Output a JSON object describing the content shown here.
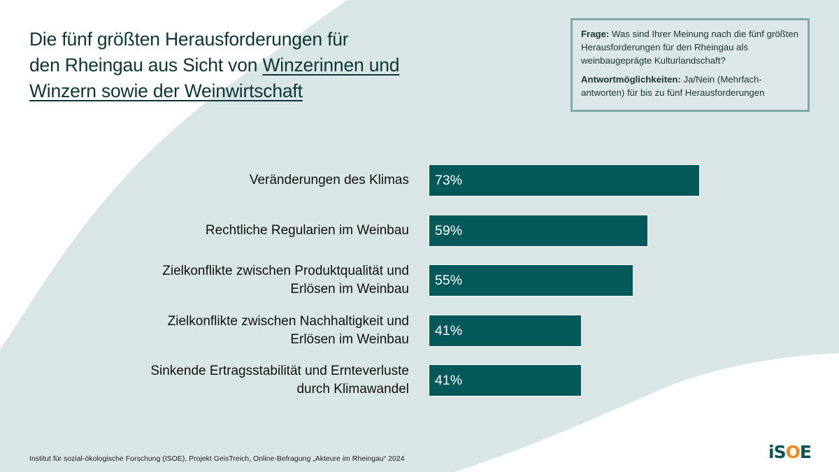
{
  "title": {
    "line1": "Die fünf größten Herausforderungen für",
    "line2_plain": "den Rheingau aus Sicht von ",
    "line2_underlined": "Winzerinnen und",
    "line3_underlined": "Winzern sowie der Weinwirtschaft"
  },
  "question_box": {
    "question_label": "Frage:",
    "question_text": "Was sind Ihrer Meinung nach die fünf größten Herausforderungen für den Rheingau als weinbaugeprägte Kulturlandschaft?",
    "answers_label": "Antwortmöglichkeiten:",
    "answers_text": "Ja/Nein (Mehrfach-antworten) für bis zu fünf Herausforderungen"
  },
  "chart_data": {
    "type": "bar",
    "orientation": "horizontal",
    "title": "Die fünf größten Herausforderungen für den Rheingau aus Sicht von Winzerinnen und Winzern sowie der Weinwirtschaft",
    "xlabel": "",
    "ylabel": "",
    "unit": "%",
    "xlim": [
      0,
      100
    ],
    "grid": false,
    "legend": "none",
    "categories": [
      "Veränderungen des Klimas",
      "Rechtliche Regularien im Weinbau",
      "Zielkonflikte zwischen Produktqualität und Erlösen im Weinbau",
      "Zielkonflikte zwischen Nachhaltigkeit und Erlösen im Weinbau",
      "Sinkende Ertragsstabilität und Ernteverluste durch Klimawandel"
    ],
    "category_lines": [
      [
        "Veränderungen des Klimas"
      ],
      [
        "Rechtliche Regularien im Weinbau"
      ],
      [
        "Zielkonflikte zwischen Produktqualität und",
        "Erlösen im Weinbau"
      ],
      [
        "Zielkonflikte zwischen Nachhaltigkeit und",
        "Erlösen im Weinbau"
      ],
      [
        "Sinkende Ertragsstabilität und Ernteverluste",
        "durch Klimawandel"
      ]
    ],
    "values": [
      73,
      59,
      55,
      41,
      41
    ],
    "data_labels": [
      "73%",
      "59%",
      "55%",
      "41%",
      "41%"
    ],
    "bar_color": "#04585a"
  },
  "footer": {
    "source": "Institut für sozial-ökologische Forschung (ISOE), Projekt GeisTreich, Online-Befragung „Akteure im Rheingau“ 2024"
  },
  "logo": {
    "part1": "iS",
    "part2": "O",
    "part3": "E",
    "accent_color": "#f08a1c",
    "brand_color": "#0b5152"
  },
  "colors": {
    "background_shape": "#dae5e5",
    "question_border": "#7faaa8"
  }
}
